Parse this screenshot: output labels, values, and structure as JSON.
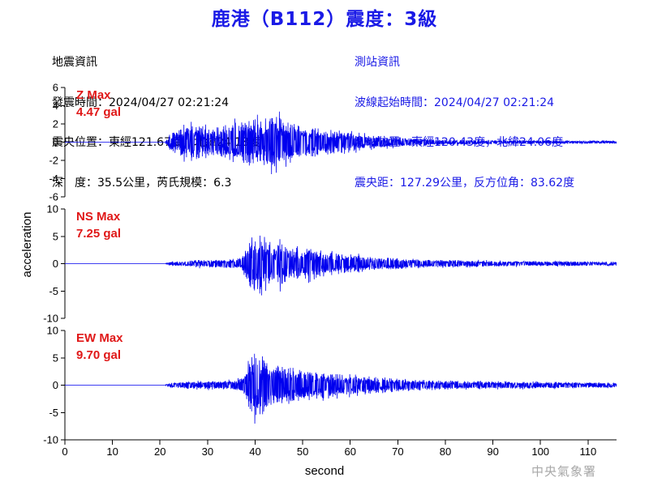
{
  "title": "鹿港（B112）震度：3級",
  "quake_info": {
    "heading": "地震資訊",
    "time_line": "發震時間：2024/04/27 02:21:24",
    "location_line": "震央位置：東經121.67度，北緯24.18度",
    "depth_line": "深　度：35.5公里，芮氏規模：6.3"
  },
  "station_info": {
    "heading": "測站資訊",
    "wave_start_line": "波線起始時間：2024/04/27 02:21:24",
    "location_line": "測站位置：東經120.43度，北緯24.06度",
    "distance_line": "震央距：127.29公里，反方位角：83.62度"
  },
  "agency": "中央氣象署",
  "colors": {
    "trace": "#0000ee",
    "title": "#1a1ae6",
    "max_label": "#e01818"
  },
  "chart_data": {
    "type": "line",
    "xlabel": "second",
    "ylabel": "acceleration",
    "xlim": [
      0,
      116
    ],
    "x_ticks": [
      "0",
      "10",
      "20",
      "30",
      "40",
      "50",
      "60",
      "70",
      "80",
      "90",
      "100",
      "110"
    ],
    "panels": [
      {
        "component": "Z",
        "max_label": "Z Max",
        "max_value": "4.47 gal",
        "ylim": [
          -6,
          6
        ],
        "y_ticks": [
          "6",
          "4",
          "2",
          "0",
          "-2",
          "-4",
          "-6"
        ],
        "envelope": [
          [
            0,
            0.02
          ],
          [
            21,
            0.02
          ],
          [
            22,
            1.2
          ],
          [
            24,
            2.0
          ],
          [
            27,
            2.6
          ],
          [
            30,
            2.2
          ],
          [
            33,
            2.4
          ],
          [
            36,
            3.0
          ],
          [
            38,
            3.4
          ],
          [
            40,
            3.6
          ],
          [
            42,
            3.0
          ],
          [
            44,
            4.4
          ],
          [
            46,
            3.4
          ],
          [
            48,
            3.1
          ],
          [
            50,
            2.4
          ],
          [
            54,
            2.0
          ],
          [
            58,
            1.9
          ],
          [
            62,
            1.2
          ],
          [
            66,
            0.9
          ],
          [
            70,
            0.7
          ],
          [
            75,
            0.5
          ],
          [
            80,
            0.4
          ],
          [
            90,
            0.3
          ],
          [
            100,
            0.25
          ],
          [
            116,
            0.2
          ]
        ]
      },
      {
        "component": "NS",
        "max_label": "NS Max",
        "max_value": "7.25 gal",
        "ylim": [
          -10,
          10
        ],
        "y_ticks": [
          "10",
          "5",
          "0",
          "-5",
          "-10"
        ],
        "envelope": [
          [
            0,
            0.03
          ],
          [
            21,
            0.03
          ],
          [
            22,
            0.4
          ],
          [
            26,
            0.8
          ],
          [
            30,
            1.0
          ],
          [
            34,
            1.1
          ],
          [
            37,
            1.5
          ],
          [
            38,
            3.5
          ],
          [
            39,
            6.5
          ],
          [
            40,
            7.2
          ],
          [
            42,
            6.0
          ],
          [
            44,
            5.5
          ],
          [
            46,
            5.2
          ],
          [
            48,
            4.5
          ],
          [
            52,
            3.8
          ],
          [
            56,
            3.0
          ],
          [
            60,
            2.4
          ],
          [
            64,
            1.8
          ],
          [
            68,
            1.6
          ],
          [
            72,
            1.3
          ],
          [
            78,
            1.0
          ],
          [
            85,
            0.8
          ],
          [
            95,
            0.7
          ],
          [
            105,
            0.6
          ],
          [
            116,
            0.5
          ]
        ]
      },
      {
        "component": "EW",
        "max_label": "EW Max",
        "max_value": "9.70 gal",
        "ylim": [
          -10,
          10
        ],
        "y_ticks": [
          "10",
          "5",
          "0",
          "-5",
          "-10"
        ],
        "envelope": [
          [
            0,
            0.03
          ],
          [
            21,
            0.03
          ],
          [
            22,
            0.6
          ],
          [
            26,
            0.9
          ],
          [
            30,
            1.0
          ],
          [
            34,
            1.1
          ],
          [
            37,
            1.6
          ],
          [
            38,
            3.0
          ],
          [
            39,
            7.0
          ],
          [
            40,
            9.7
          ],
          [
            41,
            8.0
          ],
          [
            43,
            5.5
          ],
          [
            46,
            5.0
          ],
          [
            50,
            4.0
          ],
          [
            55,
            3.2
          ],
          [
            60,
            2.6
          ],
          [
            64,
            2.2
          ],
          [
            68,
            2.0
          ],
          [
            72,
            1.6
          ],
          [
            78,
            1.2
          ],
          [
            85,
            1.0
          ],
          [
            95,
            0.9
          ],
          [
            105,
            0.8
          ],
          [
            116,
            0.6
          ]
        ]
      }
    ]
  }
}
